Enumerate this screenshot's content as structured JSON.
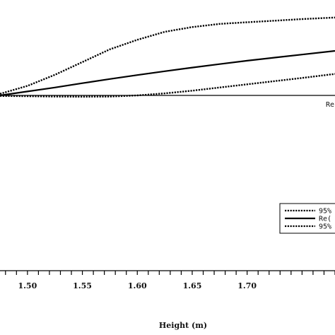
{
  "chart_data": {
    "type": "line",
    "xlabel": "Height (m)",
    "xlim": [
      1.475,
      1.78
    ],
    "ylim": [
      0,
      1.6
    ],
    "x_ticks": [
      1.5,
      1.55,
      1.6,
      1.65,
      1.7
    ],
    "x_tick_labels": [
      "1.50",
      "1.55",
      "1.60",
      "1.65",
      "1.70"
    ],
    "reference_value": 1.0,
    "reference_label": "Re",
    "series": [
      {
        "key": "upper",
        "style": "dotted",
        "x": [
          1.475,
          1.5,
          1.525,
          1.55,
          1.575,
          1.6,
          1.625,
          1.65,
          1.675,
          1.7,
          1.725,
          1.75,
          1.78
        ],
        "values": [
          1.01,
          1.06,
          1.13,
          1.21,
          1.29,
          1.35,
          1.4,
          1.43,
          1.45,
          1.46,
          1.47,
          1.48,
          1.49
        ]
      },
      {
        "key": "estimate",
        "style": "solid",
        "x": [
          1.475,
          1.5,
          1.525,
          1.55,
          1.575,
          1.6,
          1.625,
          1.65,
          1.675,
          1.7,
          1.725,
          1.75,
          1.78
        ],
        "values": [
          1.0,
          1.025,
          1.05,
          1.077,
          1.103,
          1.128,
          1.152,
          1.175,
          1.197,
          1.218,
          1.238,
          1.257,
          1.28
        ]
      },
      {
        "key": "lower",
        "style": "dotted",
        "x": [
          1.475,
          1.5,
          1.525,
          1.55,
          1.575,
          1.6,
          1.625,
          1.65,
          1.675,
          1.7,
          1.725,
          1.75,
          1.78
        ],
        "values": [
          0.997,
          0.995,
          0.993,
          0.992,
          0.993,
          1.0,
          1.013,
          1.03,
          1.05,
          1.07,
          1.09,
          1.11,
          1.135
        ]
      }
    ],
    "legend": {
      "placement": "right",
      "entries": [
        {
          "label": "95%",
          "style": "dotted"
        },
        {
          "label": "Re(",
          "style": "solid"
        },
        {
          "label": "95%",
          "style": "dotted"
        }
      ]
    }
  }
}
